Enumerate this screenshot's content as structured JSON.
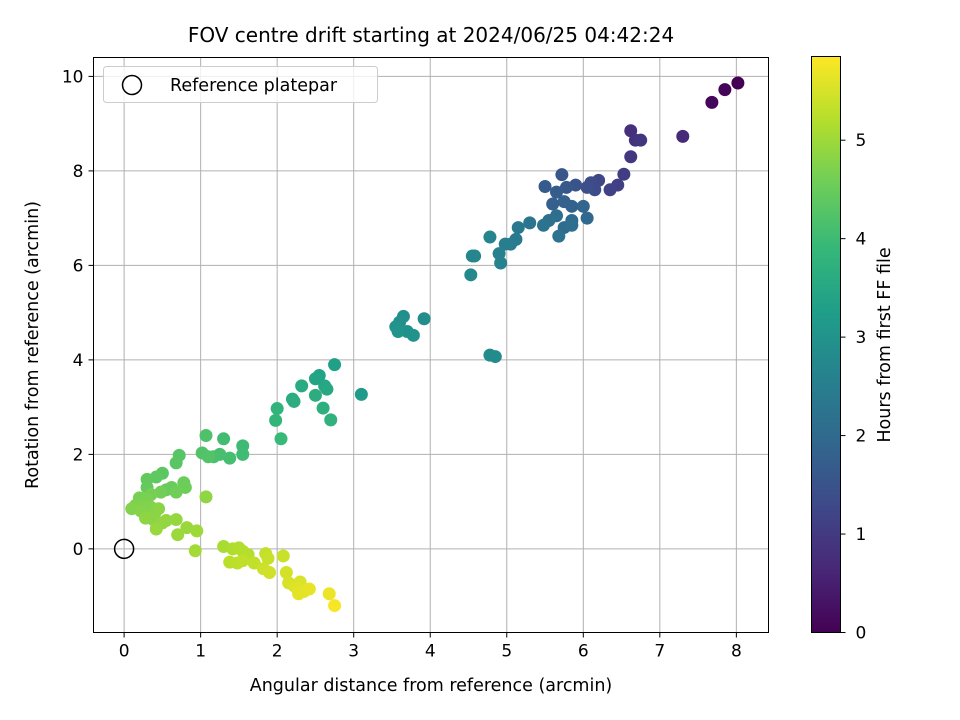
{
  "chart_data": {
    "type": "scatter",
    "title": "FOV centre drift starting at 2024/06/25 04:42:24",
    "xlabel": "Angular distance from reference (arcmin)",
    "ylabel": "Rotation from reference (arcmin)",
    "xlim": [
      -0.4,
      8.42
    ],
    "ylim": [
      -1.77,
      10.4
    ],
    "xticks": [
      0,
      1,
      2,
      3,
      4,
      5,
      6,
      7,
      8
    ],
    "yticks": [
      0,
      2,
      4,
      6,
      8,
      10
    ],
    "grid": true,
    "legend": {
      "label": "Reference platepar",
      "position": "upper-left"
    },
    "reference_point": {
      "x": 0,
      "y": 0
    },
    "colorbar": {
      "label": "Hours from first FF file",
      "range": [
        0,
        5.85
      ],
      "ticks": [
        0,
        1,
        2,
        3,
        4,
        5
      ],
      "colormap": "viridis"
    },
    "points": [
      {
        "x": 8.02,
        "y": 9.86,
        "h": 0.0
      },
      {
        "x": 7.85,
        "y": 9.72,
        "h": 0.05
      },
      {
        "x": 7.68,
        "y": 9.45,
        "h": 0.1
      },
      {
        "x": 7.3,
        "y": 8.73,
        "h": 0.7
      },
      {
        "x": 6.62,
        "y": 8.85,
        "h": 0.8
      },
      {
        "x": 6.68,
        "y": 8.65,
        "h": 0.85
      },
      {
        "x": 6.75,
        "y": 8.65,
        "h": 0.9
      },
      {
        "x": 6.62,
        "y": 8.3,
        "h": 0.95
      },
      {
        "x": 6.53,
        "y": 7.93,
        "h": 1.05
      },
      {
        "x": 6.45,
        "y": 7.7,
        "h": 1.1
      },
      {
        "x": 6.35,
        "y": 7.6,
        "h": 1.15
      },
      {
        "x": 6.2,
        "y": 7.8,
        "h": 1.25
      },
      {
        "x": 6.1,
        "y": 7.75,
        "h": 1.3
      },
      {
        "x": 6.15,
        "y": 7.6,
        "h": 1.35
      },
      {
        "x": 6.05,
        "y": 7.65,
        "h": 1.4
      },
      {
        "x": 5.9,
        "y": 7.7,
        "h": 1.5
      },
      {
        "x": 5.72,
        "y": 7.92,
        "h": 1.55
      },
      {
        "x": 5.78,
        "y": 7.65,
        "h": 1.6
      },
      {
        "x": 5.5,
        "y": 7.67,
        "h": 1.65
      },
      {
        "x": 5.65,
        "y": 7.55,
        "h": 1.7
      },
      {
        "x": 5.6,
        "y": 7.3,
        "h": 1.75
      },
      {
        "x": 5.75,
        "y": 7.35,
        "h": 1.8
      },
      {
        "x": 5.85,
        "y": 7.25,
        "h": 1.85
      },
      {
        "x": 6.0,
        "y": 7.25,
        "h": 1.9
      },
      {
        "x": 6.05,
        "y": 7.0,
        "h": 1.95
      },
      {
        "x": 5.85,
        "y": 6.95,
        "h": 2.0
      },
      {
        "x": 5.75,
        "y": 6.8,
        "h": 2.05
      },
      {
        "x": 5.85,
        "y": 6.85,
        "h": 2.1
      },
      {
        "x": 5.65,
        "y": 7.05,
        "h": 2.1
      },
      {
        "x": 5.55,
        "y": 6.95,
        "h": 2.15
      },
      {
        "x": 5.68,
        "y": 6.62,
        "h": 2.2
      },
      {
        "x": 5.48,
        "y": 6.85,
        "h": 2.25
      },
      {
        "x": 5.3,
        "y": 6.9,
        "h": 2.3
      },
      {
        "x": 5.15,
        "y": 6.8,
        "h": 2.35
      },
      {
        "x": 5.12,
        "y": 6.55,
        "h": 2.4
      },
      {
        "x": 5.05,
        "y": 6.45,
        "h": 2.45
      },
      {
        "x": 4.98,
        "y": 6.45,
        "h": 2.5
      },
      {
        "x": 4.9,
        "y": 6.25,
        "h": 2.55
      },
      {
        "x": 4.92,
        "y": 6.05,
        "h": 2.6
      },
      {
        "x": 4.78,
        "y": 6.6,
        "h": 2.65
      },
      {
        "x": 4.55,
        "y": 6.2,
        "h": 2.7
      },
      {
        "x": 4.58,
        "y": 6.2,
        "h": 2.72
      },
      {
        "x": 4.53,
        "y": 5.8,
        "h": 2.75
      },
      {
        "x": 4.78,
        "y": 4.1,
        "h": 2.8
      },
      {
        "x": 4.85,
        "y": 4.07,
        "h": 2.82
      },
      {
        "x": 3.92,
        "y": 4.87,
        "h": 2.85
      },
      {
        "x": 3.65,
        "y": 4.92,
        "h": 2.9
      },
      {
        "x": 3.6,
        "y": 4.8,
        "h": 2.92
      },
      {
        "x": 3.7,
        "y": 4.6,
        "h": 2.95
      },
      {
        "x": 3.55,
        "y": 4.7,
        "h": 2.97
      },
      {
        "x": 3.78,
        "y": 4.52,
        "h": 3.0
      },
      {
        "x": 3.58,
        "y": 4.6,
        "h": 3.02
      },
      {
        "x": 3.1,
        "y": 3.27,
        "h": 3.15
      },
      {
        "x": 2.75,
        "y": 3.9,
        "h": 3.3
      },
      {
        "x": 2.55,
        "y": 3.67,
        "h": 3.35
      },
      {
        "x": 2.5,
        "y": 3.6,
        "h": 3.4
      },
      {
        "x": 2.62,
        "y": 3.45,
        "h": 3.45
      },
      {
        "x": 2.65,
        "y": 3.38,
        "h": 3.5
      },
      {
        "x": 2.32,
        "y": 3.45,
        "h": 3.55
      },
      {
        "x": 2.2,
        "y": 3.17,
        "h": 3.6
      },
      {
        "x": 2.22,
        "y": 3.12,
        "h": 3.62
      },
      {
        "x": 2.5,
        "y": 3.25,
        "h": 3.65
      },
      {
        "x": 2.6,
        "y": 2.98,
        "h": 3.7
      },
      {
        "x": 2.7,
        "y": 2.73,
        "h": 3.75
      },
      {
        "x": 2.0,
        "y": 2.97,
        "h": 3.8
      },
      {
        "x": 1.98,
        "y": 2.72,
        "h": 3.85
      },
      {
        "x": 2.05,
        "y": 2.33,
        "h": 3.95
      },
      {
        "x": 1.55,
        "y": 2.18,
        "h": 4.0
      },
      {
        "x": 1.55,
        "y": 2.0,
        "h": 4.02
      },
      {
        "x": 1.3,
        "y": 2.33,
        "h": 4.05
      },
      {
        "x": 1.38,
        "y": 1.92,
        "h": 4.1
      },
      {
        "x": 1.25,
        "y": 2.0,
        "h": 4.12
      },
      {
        "x": 1.17,
        "y": 1.95,
        "h": 4.15
      },
      {
        "x": 1.07,
        "y": 2.4,
        "h": 4.2
      },
      {
        "x": 1.02,
        "y": 2.03,
        "h": 4.22
      },
      {
        "x": 1.1,
        "y": 1.95,
        "h": 4.25
      },
      {
        "x": 0.72,
        "y": 1.98,
        "h": 4.3
      },
      {
        "x": 0.68,
        "y": 1.82,
        "h": 4.32
      },
      {
        "x": 0.5,
        "y": 1.6,
        "h": 4.35
      },
      {
        "x": 0.42,
        "y": 1.52,
        "h": 4.4
      },
      {
        "x": 0.3,
        "y": 1.47,
        "h": 4.42
      },
      {
        "x": 0.3,
        "y": 1.3,
        "h": 4.45
      },
      {
        "x": 0.55,
        "y": 1.25,
        "h": 4.47
      },
      {
        "x": 0.62,
        "y": 1.3,
        "h": 4.5
      },
      {
        "x": 0.78,
        "y": 1.4,
        "h": 4.52
      },
      {
        "x": 0.8,
        "y": 1.3,
        "h": 4.55
      },
      {
        "x": 0.68,
        "y": 1.2,
        "h": 4.57
      },
      {
        "x": 0.48,
        "y": 1.2,
        "h": 4.6
      },
      {
        "x": 0.35,
        "y": 1.15,
        "h": 4.62
      },
      {
        "x": 0.2,
        "y": 1.08,
        "h": 4.65
      },
      {
        "x": 0.3,
        "y": 1.05,
        "h": 4.67
      },
      {
        "x": 0.15,
        "y": 0.92,
        "h": 4.7
      },
      {
        "x": 0.25,
        "y": 0.9,
        "h": 4.72
      },
      {
        "x": 0.35,
        "y": 0.88,
        "h": 4.73
      },
      {
        "x": 0.1,
        "y": 0.85,
        "h": 4.75
      },
      {
        "x": 0.22,
        "y": 0.8,
        "h": 4.77
      },
      {
        "x": 0.3,
        "y": 0.7,
        "h": 4.78
      },
      {
        "x": 0.4,
        "y": 0.75,
        "h": 4.8
      },
      {
        "x": 0.45,
        "y": 0.85,
        "h": 4.82
      },
      {
        "x": 0.38,
        "y": 0.62,
        "h": 4.83
      },
      {
        "x": 0.28,
        "y": 0.65,
        "h": 4.85
      },
      {
        "x": 1.07,
        "y": 1.1,
        "h": 4.87
      },
      {
        "x": 0.5,
        "y": 0.55,
        "h": 4.88
      },
      {
        "x": 0.55,
        "y": 0.6,
        "h": 4.9
      },
      {
        "x": 0.68,
        "y": 0.62,
        "h": 4.92
      },
      {
        "x": 0.42,
        "y": 0.42,
        "h": 4.93
      },
      {
        "x": 0.82,
        "y": 0.45,
        "h": 4.95
      },
      {
        "x": 0.7,
        "y": 0.3,
        "h": 4.97
      },
      {
        "x": 0.95,
        "y": 0.38,
        "h": 5.0
      },
      {
        "x": 0.93,
        "y": -0.04,
        "h": 5.05
      },
      {
        "x": 1.3,
        "y": 0.05,
        "h": 5.1
      },
      {
        "x": 1.42,
        "y": 0.0,
        "h": 5.15
      },
      {
        "x": 1.5,
        "y": 0.02,
        "h": 5.17
      },
      {
        "x": 1.55,
        "y": -0.05,
        "h": 5.2
      },
      {
        "x": 1.62,
        "y": -0.12,
        "h": 5.22
      },
      {
        "x": 1.38,
        "y": -0.28,
        "h": 5.25
      },
      {
        "x": 1.48,
        "y": -0.3,
        "h": 5.27
      },
      {
        "x": 1.55,
        "y": -0.25,
        "h": 5.3
      },
      {
        "x": 1.7,
        "y": -0.3,
        "h": 5.32
      },
      {
        "x": 1.85,
        "y": -0.1,
        "h": 5.35
      },
      {
        "x": 1.88,
        "y": -0.2,
        "h": 5.37
      },
      {
        "x": 2.08,
        "y": -0.15,
        "h": 5.4
      },
      {
        "x": 1.82,
        "y": -0.42,
        "h": 5.42
      },
      {
        "x": 1.9,
        "y": -0.5,
        "h": 5.45
      },
      {
        "x": 2.12,
        "y": -0.5,
        "h": 5.47
      },
      {
        "x": 2.15,
        "y": -0.72,
        "h": 5.5
      },
      {
        "x": 2.22,
        "y": -0.78,
        "h": 5.52
      },
      {
        "x": 2.3,
        "y": -0.7,
        "h": 5.55
      },
      {
        "x": 2.25,
        "y": -0.82,
        "h": 5.57
      },
      {
        "x": 2.35,
        "y": -0.9,
        "h": 5.6
      },
      {
        "x": 2.28,
        "y": -0.95,
        "h": 5.62
      },
      {
        "x": 2.42,
        "y": -0.85,
        "h": 5.65
      },
      {
        "x": 2.68,
        "y": -0.95,
        "h": 5.7
      },
      {
        "x": 2.75,
        "y": -1.2,
        "h": 5.8
      }
    ]
  }
}
